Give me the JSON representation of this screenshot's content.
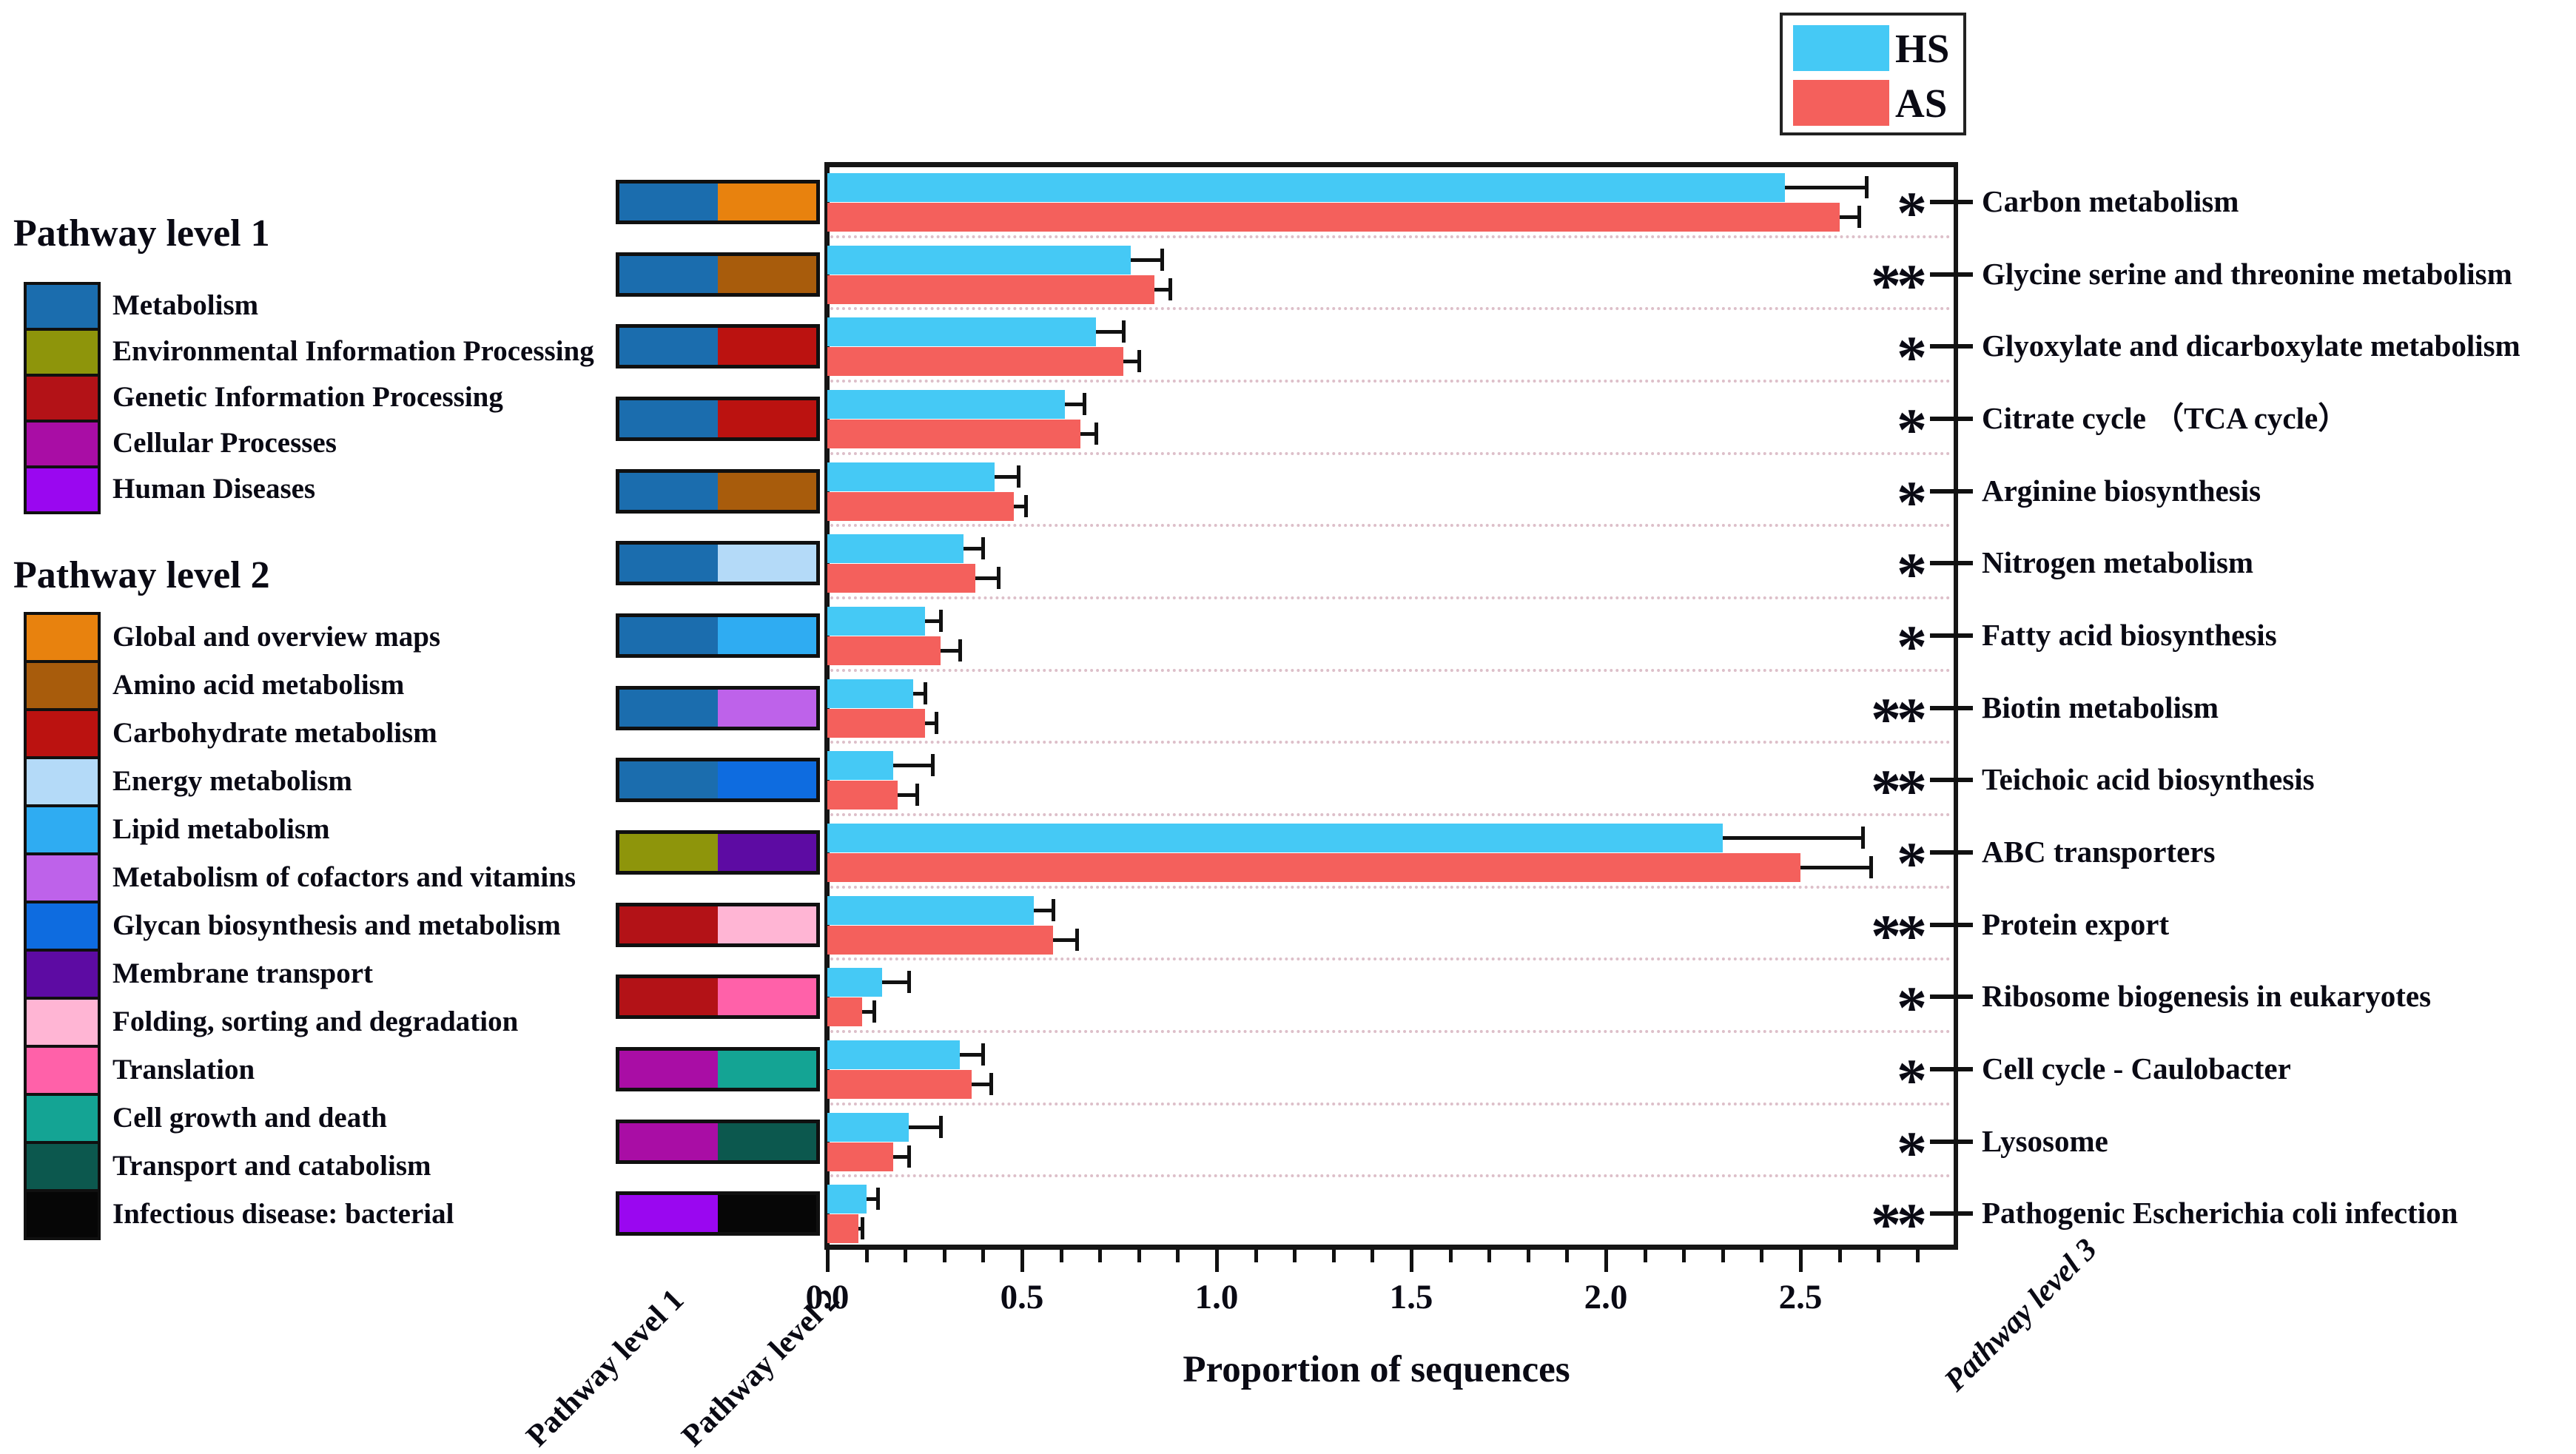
{
  "legend": {
    "items": [
      {
        "label": "HS",
        "color": "#45C9F5"
      },
      {
        "label": "AS",
        "color": "#F4605C"
      }
    ]
  },
  "panel": {
    "level1_header": "Pathway level 1",
    "level2_header": "Pathway level 2",
    "level1_items": [
      {
        "label": "Metabolism",
        "color": "#1B6DAE"
      },
      {
        "label": "Environmental Information Processing",
        "color": "#8E950B"
      },
      {
        "label": "Genetic Information Processing",
        "color": "#B31217"
      },
      {
        "label": "Cellular Processes",
        "color": "#A90DA5"
      },
      {
        "label": "Human Diseases",
        "color": "#9A07F0"
      }
    ],
    "level2_items": [
      {
        "label": "Global and overview maps",
        "color": "#E8820E"
      },
      {
        "label": "Amino acid metabolism",
        "color": "#A85C0C"
      },
      {
        "label": "Carbohydrate metabolism",
        "color": "#BB1210"
      },
      {
        "label": "Energy metabolism",
        "color": "#B4DAF8"
      },
      {
        "label": "Lipid metabolism",
        "color": "#2FACF2"
      },
      {
        "label": "Metabolism of cofactors and vitamins",
        "color": "#BE62EA"
      },
      {
        "label": "Glycan biosynthesis and metabolism",
        "color": "#0E6CE0"
      },
      {
        "label": "Membrane transport",
        "color": "#5D0BA3"
      },
      {
        "label": "Folding, sorting and degradation",
        "color": "#FFB5D4"
      },
      {
        "label": "Translation",
        "color": "#FF61A9"
      },
      {
        "label": "Cell growth and death",
        "color": "#14A494"
      },
      {
        "label": "Transport and catabolism",
        "color": "#0C584E"
      },
      {
        "label": "Infectious disease: bacterial",
        "color": "#060606"
      }
    ]
  },
  "axis": {
    "xlabel": "Proportion of sequences",
    "ticks": [
      "0.0",
      "0.5",
      "1.0",
      "1.5",
      "2.0",
      "2.5"
    ],
    "tick_values": [
      0,
      0.5,
      1.0,
      1.5,
      2.0,
      2.5
    ],
    "minor_step": 0.1,
    "xmax": 2.89
  },
  "bottom_labels": {
    "level1": "Pathway level 1",
    "level2": "Pathway level 2",
    "level3": "Pathway level 3"
  },
  "rows": [
    {
      "label": "Carbon metabolism",
      "sig": "*",
      "level1": "Metabolism",
      "level2": "Global and overview maps",
      "hs": 2.46,
      "hs_err": 0.21,
      "as": 2.6,
      "as_err": 0.05
    },
    {
      "label": "Glycine serine and threonine metabolism",
      "sig": "**",
      "level1": "Metabolism",
      "level2": "Amino acid metabolism",
      "hs": 0.78,
      "hs_err": 0.08,
      "as": 0.84,
      "as_err": 0.04
    },
    {
      "label": "Glyoxylate and dicarboxylate metabolism",
      "sig": "*",
      "level1": "Metabolism",
      "level2": "Carbohydrate metabolism",
      "hs": 0.69,
      "hs_err": 0.07,
      "as": 0.76,
      "as_err": 0.04
    },
    {
      "label": "Citrate cycle （TCA cycle）",
      "sig": "*",
      "level1": "Metabolism",
      "level2": "Carbohydrate metabolism",
      "hs": 0.61,
      "hs_err": 0.05,
      "as": 0.65,
      "as_err": 0.04
    },
    {
      "label": "Arginine biosynthesis",
      "sig": "*",
      "level1": "Metabolism",
      "level2": "Amino acid metabolism",
      "hs": 0.43,
      "hs_err": 0.06,
      "as": 0.48,
      "as_err": 0.03
    },
    {
      "label": "Nitrogen metabolism",
      "sig": "*",
      "level1": "Metabolism",
      "level2": "Energy metabolism",
      "hs": 0.35,
      "hs_err": 0.05,
      "as": 0.38,
      "as_err": 0.06
    },
    {
      "label": "Fatty acid biosynthesis",
      "sig": "*",
      "level1": "Metabolism",
      "level2": "Lipid metabolism",
      "hs": 0.25,
      "hs_err": 0.04,
      "as": 0.29,
      "as_err": 0.05
    },
    {
      "label": "Biotin metabolism",
      "sig": "**",
      "level1": "Metabolism",
      "level2": "Metabolism of cofactors and vitamins",
      "hs": 0.22,
      "hs_err": 0.03,
      "as": 0.25,
      "as_err": 0.03
    },
    {
      "label": "Teichoic acid biosynthesis",
      "sig": "**",
      "level1": "Metabolism",
      "level2": "Glycan biosynthesis and metabolism",
      "hs": 0.17,
      "hs_err": 0.1,
      "as": 0.18,
      "as_err": 0.05
    },
    {
      "label": "ABC transporters",
      "sig": "*",
      "level1": "Environmental Information Processing",
      "level2": "Membrane transport",
      "hs": 2.3,
      "hs_err": 0.36,
      "as": 2.5,
      "as_err": 0.18
    },
    {
      "label": "Protein export",
      "sig": "**",
      "level1": "Genetic Information Processing",
      "level2": "Folding, sorting and degradation",
      "hs": 0.53,
      "hs_err": 0.05,
      "as": 0.58,
      "as_err": 0.06
    },
    {
      "label": "Ribosome biogenesis in eukaryotes",
      "sig": "*",
      "level1": "Genetic Information Processing",
      "level2": "Translation",
      "hs": 0.14,
      "hs_err": 0.07,
      "as": 0.09,
      "as_err": 0.03
    },
    {
      "label": "Cell cycle - Caulobacter",
      "sig": "*",
      "level1": "Cellular Processes",
      "level2": "Cell growth and death",
      "hs": 0.34,
      "hs_err": 0.06,
      "as": 0.37,
      "as_err": 0.05
    },
    {
      "label": "Lysosome",
      "sig": "*",
      "level1": "Cellular Processes",
      "level2": "Transport and catabolism",
      "hs": 0.21,
      "hs_err": 0.08,
      "as": 0.17,
      "as_err": 0.04
    },
    {
      "label": "Pathogenic Escherichia coli infection",
      "sig": "**",
      "level1": "Human Diseases",
      "level2": "Infectious disease: bacterial",
      "hs": 0.1,
      "hs_err": 0.03,
      "as": 0.08,
      "as_err": 0.01
    }
  ],
  "chart_data": {
    "type": "bar",
    "orientation": "horizontal",
    "title": "",
    "xlabel": "Proportion of sequences",
    "ylabel": "Pathway level 3",
    "xlim": [
      0,
      2.89
    ],
    "x_ticks": [
      0,
      0.5,
      1.0,
      1.5,
      2.0,
      2.5
    ],
    "grid": "dotted row separators",
    "legend_position": "top-right",
    "categories": [
      "Carbon metabolism",
      "Glycine serine and threonine metabolism",
      "Glyoxylate and dicarboxylate metabolism",
      "Citrate cycle （TCA cycle）",
      "Arginine biosynthesis",
      "Nitrogen metabolism",
      "Fatty acid biosynthesis",
      "Biotin metabolism",
      "Teichoic acid biosynthesis",
      "ABC transporters",
      "Protein export",
      "Ribosome biogenesis in eukaryotes",
      "Cell cycle - Caulobacter",
      "Lysosome",
      "Pathogenic Escherichia coli infection"
    ],
    "significance": [
      "*",
      "**",
      "*",
      "*",
      "*",
      "*",
      "*",
      "**",
      "**",
      "*",
      "**",
      "*",
      "*",
      "*",
      "**"
    ],
    "series": [
      {
        "name": "HS",
        "color": "#45C9F5",
        "values": [
          2.46,
          0.78,
          0.69,
          0.61,
          0.43,
          0.35,
          0.25,
          0.22,
          0.17,
          2.3,
          0.53,
          0.14,
          0.34,
          0.21,
          0.1
        ],
        "errors": [
          0.21,
          0.08,
          0.07,
          0.05,
          0.06,
          0.05,
          0.04,
          0.03,
          0.1,
          0.36,
          0.05,
          0.07,
          0.06,
          0.08,
          0.03
        ]
      },
      {
        "name": "AS",
        "color": "#F4605C",
        "values": [
          2.6,
          0.84,
          0.76,
          0.65,
          0.48,
          0.38,
          0.29,
          0.25,
          0.18,
          2.5,
          0.58,
          0.09,
          0.37,
          0.17,
          0.08
        ],
        "errors": [
          0.05,
          0.04,
          0.04,
          0.04,
          0.03,
          0.06,
          0.05,
          0.03,
          0.05,
          0.18,
          0.06,
          0.03,
          0.05,
          0.04,
          0.01
        ]
      }
    ]
  }
}
